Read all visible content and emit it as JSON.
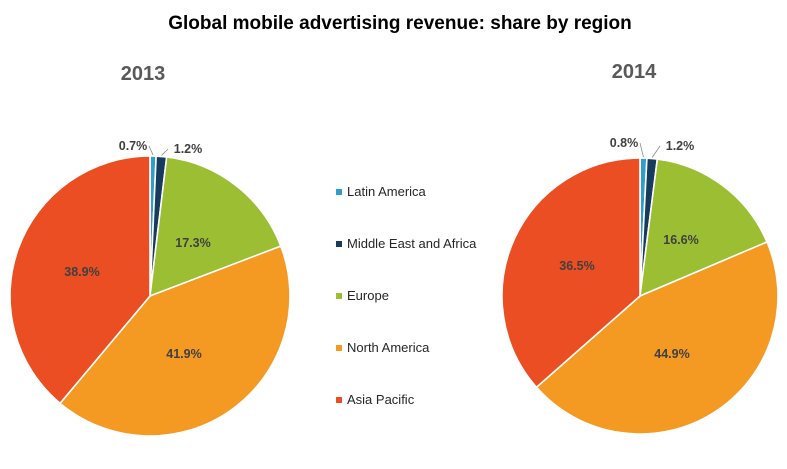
{
  "chart_data": {
    "type": "pie",
    "title": "Global mobile advertising revenue: share by region",
    "legend": {
      "placement": "center",
      "entries": [
        "Latin America",
        "Middle East and Africa",
        "Europe",
        "North America",
        "Asia Pacific"
      ]
    },
    "colors": [
      "#2e9fc9",
      "#163b5c",
      "#9cbe33",
      "#f49a22",
      "#ea4e22"
    ],
    "pies": [
      {
        "label": "2013",
        "categories": [
          "Latin America",
          "Middle East and Africa",
          "Europe",
          "North America",
          "Asia Pacific"
        ],
        "values": [
          0.7,
          1.2,
          17.3,
          41.9,
          38.9
        ],
        "value_labels": [
          "0.7%",
          "1.2%",
          "17.3%",
          "41.9%",
          "38.9%"
        ]
      },
      {
        "label": "2014",
        "categories": [
          "Latin America",
          "Middle East and Africa",
          "Europe",
          "North America",
          "Asia Pacific"
        ],
        "values": [
          0.8,
          1.2,
          16.6,
          44.9,
          36.5
        ],
        "value_labels": [
          "0.8%",
          "1.2%",
          "16.6%",
          "44.9%",
          "36.5%"
        ]
      }
    ]
  }
}
